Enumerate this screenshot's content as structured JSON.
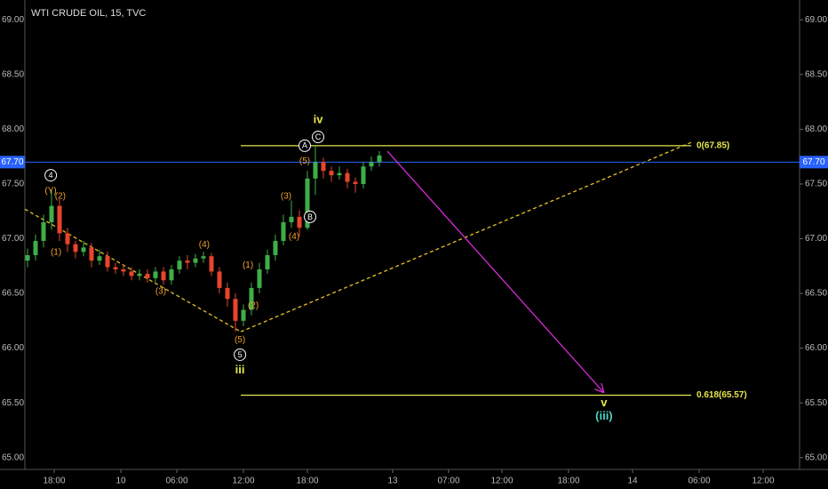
{
  "chart_data": {
    "type": "candlestick",
    "title": "WTI CRUDE OIL, 15, TVC",
    "x": [
      1,
      4,
      7,
      10,
      13,
      16,
      19,
      22,
      25,
      28,
      31,
      34,
      37,
      40,
      43,
      46,
      49,
      52,
      55,
      58,
      61,
      64,
      67,
      70,
      73,
      76,
      79,
      82,
      85,
      88,
      91,
      94,
      97,
      100,
      103,
      106,
      109,
      112,
      115,
      118,
      121,
      124,
      127,
      130,
      133
    ],
    "open": [
      66.8,
      66.85,
      66.98,
      67.15,
      67.3,
      67.05,
      66.95,
      66.88,
      66.92,
      66.8,
      66.84,
      66.74,
      66.72,
      66.7,
      66.66,
      66.68,
      66.64,
      66.7,
      66.62,
      66.72,
      66.8,
      66.78,
      66.82,
      66.84,
      66.7,
      66.55,
      66.45,
      66.25,
      66.35,
      66.55,
      66.72,
      66.85,
      66.98,
      67.15,
      67.2,
      67.1,
      67.55,
      67.7,
      67.62,
      67.58,
      67.6,
      67.52,
      67.5,
      67.66,
      67.7
    ],
    "high": [
      66.91,
      67.04,
      67.22,
      67.45,
      67.36,
      67.1,
      66.98,
      66.98,
      66.96,
      66.9,
      66.88,
      66.78,
      66.76,
      66.74,
      66.72,
      66.72,
      66.74,
      66.74,
      66.76,
      66.84,
      66.85,
      66.86,
      66.88,
      66.87,
      66.74,
      66.6,
      66.5,
      66.4,
      66.6,
      66.78,
      66.9,
      67.04,
      67.22,
      67.35,
      67.26,
      67.62,
      67.85,
      67.74,
      67.66,
      67.66,
      67.64,
      67.56,
      67.7,
      67.75,
      67.8
    ],
    "low": [
      66.74,
      66.8,
      66.92,
      67.08,
      66.98,
      66.88,
      66.82,
      66.84,
      66.74,
      66.76,
      66.7,
      66.68,
      66.66,
      66.62,
      66.62,
      66.6,
      66.6,
      66.58,
      66.58,
      66.68,
      66.72,
      66.74,
      66.78,
      66.66,
      66.5,
      66.38,
      66.15,
      66.2,
      66.3,
      66.5,
      66.68,
      66.8,
      66.94,
      67.1,
      67.02,
      67.08,
      67.4,
      67.55,
      67.52,
      67.54,
      67.46,
      67.42,
      67.46,
      67.62,
      67.66
    ],
    "close": [
      66.85,
      66.98,
      67.15,
      67.3,
      67.05,
      66.95,
      66.88,
      66.92,
      66.8,
      66.84,
      66.74,
      66.72,
      66.7,
      66.66,
      66.68,
      66.64,
      66.7,
      66.62,
      66.72,
      66.8,
      66.78,
      66.82,
      66.84,
      66.7,
      66.55,
      66.45,
      66.25,
      66.35,
      66.55,
      66.72,
      66.85,
      66.98,
      67.15,
      67.2,
      67.1,
      67.55,
      67.7,
      67.62,
      67.58,
      67.6,
      67.52,
      67.5,
      67.66,
      67.7,
      67.76
    ],
    "up_color": "#3fae49",
    "down_color": "#e8452c",
    "xlim": [
      0,
      290
    ],
    "ylim": [
      64.9,
      69.1
    ],
    "xticks": [
      {
        "value": 11,
        "label": "18:00"
      },
      {
        "value": 36,
        "label": "10"
      },
      {
        "value": 57,
        "label": "06:00"
      },
      {
        "value": 82,
        "label": "12:00"
      },
      {
        "value": 106,
        "label": "18:00"
      },
      {
        "value": 138,
        "label": "13"
      },
      {
        "value": 159,
        "label": "07:00"
      },
      {
        "value": 179,
        "label": "12:00"
      },
      {
        "value": 204,
        "label": "18:00"
      },
      {
        "value": 228,
        "label": "14"
      },
      {
        "value": 253,
        "label": "06:00"
      },
      {
        "value": 277,
        "label": "12:00"
      }
    ],
    "yticks": [
      {
        "value": 65,
        "label": "65.00"
      },
      {
        "value": 65.5,
        "label": "65.50"
      },
      {
        "value": 66,
        "label": "66.00"
      },
      {
        "value": 66.5,
        "label": "66.50"
      },
      {
        "value": 67,
        "label": "67.00"
      },
      {
        "value": 67.5,
        "label": "67.50"
      },
      {
        "value": 68,
        "label": "68.00"
      },
      {
        "value": 68.5,
        "label": "68.50"
      },
      {
        "value": 69,
        "label": "69.00"
      }
    ],
    "price_line": {
      "value": 67.7,
      "label": "67.70",
      "color": "#2962ff"
    },
    "fib_levels": [
      {
        "value": 67.85,
        "label": "0(67.85)"
      },
      {
        "value": 65.57,
        "label": "0.618(65.57)"
      }
    ],
    "fib_x": [
      81,
      250
    ],
    "fib_color": "#e6e64c",
    "trend_lines": [
      {
        "x": [
          0,
          81
        ],
        "y": [
          67.27,
          66.15
        ]
      },
      {
        "x": [
          81,
          250
        ],
        "y": [
          66.15,
          67.88
        ]
      }
    ],
    "trend_color": "#e6c229",
    "arrow": {
      "x": [
        136,
        217
      ],
      "y": [
        67.8,
        65.6
      ],
      "color": "#d62bd6"
    },
    "annotations": [
      {
        "text": "4",
        "x": 9.7,
        "y": 67.58,
        "color": "#ffffff",
        "circled": true
      },
      {
        "text": "(Y)",
        "x": 9.7,
        "y": 67.44,
        "color": "#f0a030"
      },
      {
        "text": "(2)",
        "x": 13.3,
        "y": 67.39,
        "color": "#f0a030"
      },
      {
        "text": "(1)",
        "x": 11.7,
        "y": 66.88,
        "color": "#f0a030"
      },
      {
        "text": "(3)",
        "x": 51,
        "y": 66.52,
        "color": "#f0a030"
      },
      {
        "text": "(4)",
        "x": 67.3,
        "y": 66.95,
        "color": "#f0a030"
      },
      {
        "text": "(1)",
        "x": 83.7,
        "y": 66.76,
        "color": "#f0a030"
      },
      {
        "text": "(2)",
        "x": 85.7,
        "y": 66.39,
        "color": "#f0a030"
      },
      {
        "text": "(5)",
        "x": 80.7,
        "y": 66.08,
        "color": "#f0a030"
      },
      {
        "text": "5",
        "x": 80.7,
        "y": 65.94,
        "color": "#ffffff",
        "circled": true
      },
      {
        "text": "iii",
        "x": 80.7,
        "y": 65.8,
        "color": "#e6e64c"
      },
      {
        "text": "(3)",
        "x": 98,
        "y": 67.39,
        "color": "#f0a030"
      },
      {
        "text": "(4)",
        "x": 101,
        "y": 67.02,
        "color": "#f0a030"
      },
      {
        "text": "(5)",
        "x": 105,
        "y": 67.71,
        "color": "#f0a030"
      },
      {
        "text": "A",
        "x": 105,
        "y": 67.85,
        "color": "#ffffff",
        "circled": true
      },
      {
        "text": "B",
        "x": 107,
        "y": 67.2,
        "color": "#ffffff",
        "circled": true
      },
      {
        "text": "C",
        "x": 110,
        "y": 67.93,
        "color": "#ffffff",
        "circled": true
      },
      {
        "text": "iv",
        "x": 110,
        "y": 68.09,
        "color": "#e6e64c"
      },
      {
        "text": "v",
        "x": 217.3,
        "y": 65.5,
        "color": "#e6e64c"
      },
      {
        "text": "(iii)",
        "x": 217.3,
        "y": 65.38,
        "color": "#4fd1c5"
      }
    ]
  }
}
